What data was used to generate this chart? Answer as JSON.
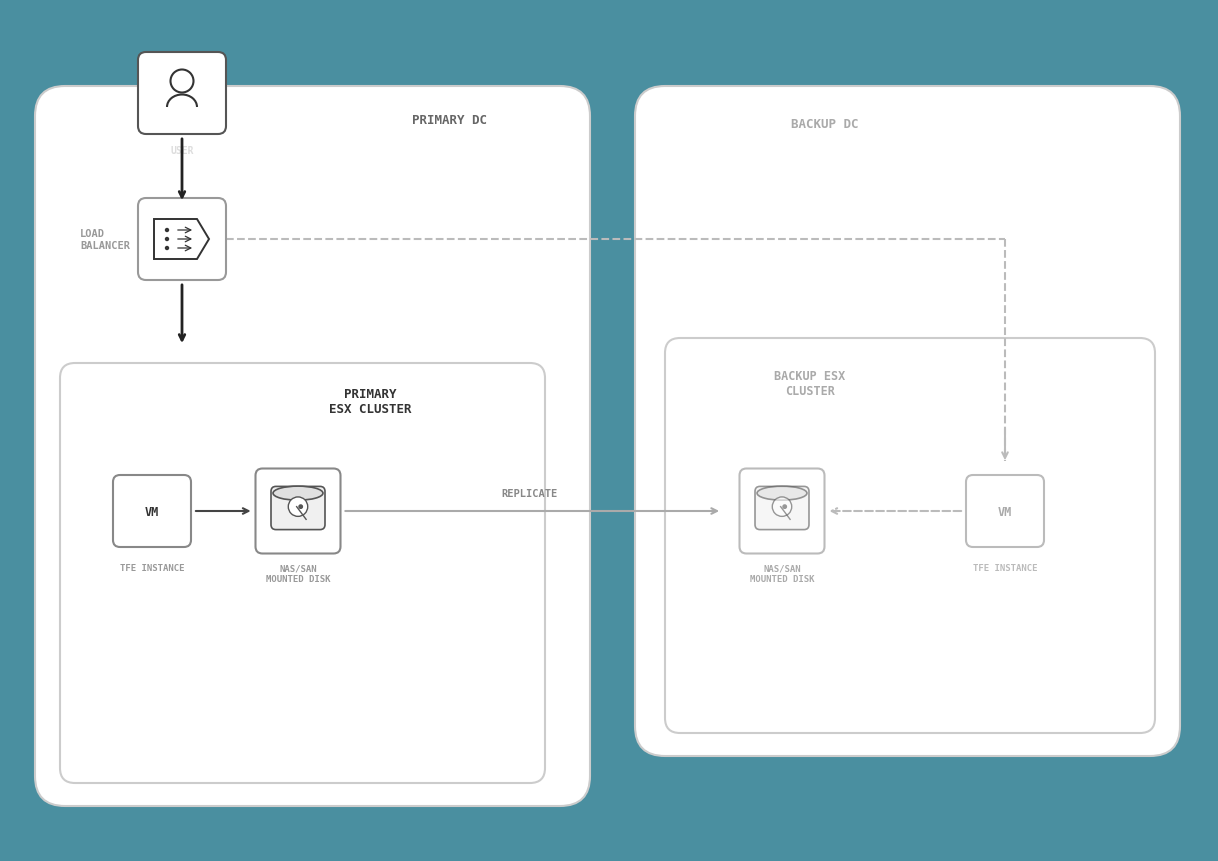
{
  "bg_color": "#4a8fa0",
  "box_bg": "#ffffff",
  "box_border": "#cccccc",
  "dark_border": "#444444",
  "gray_text": "#999999",
  "dark_text": "#333333",
  "primary_dc_label": "PRIMARY DC",
  "backup_dc_label": "BACKUP DC",
  "primary_cluster_label": "PRIMARY\nESX CLUSTER",
  "backup_cluster_label": "BACKUP ESX\nCLUSTER",
  "user_label": "USER",
  "lb_label": "LOAD\nBALANCER",
  "vm_label": "VM",
  "tfe_label": "TFE INSTANCE",
  "disk_label": "NAS/SAN\nMOUNTED DISK",
  "replicate_label": "REPLICATE",
  "vm_label2": "VM",
  "tfe_label2": "TFE INSTANCE",
  "disk_label2": "NAS/SAN\nMOUNTED DISK"
}
